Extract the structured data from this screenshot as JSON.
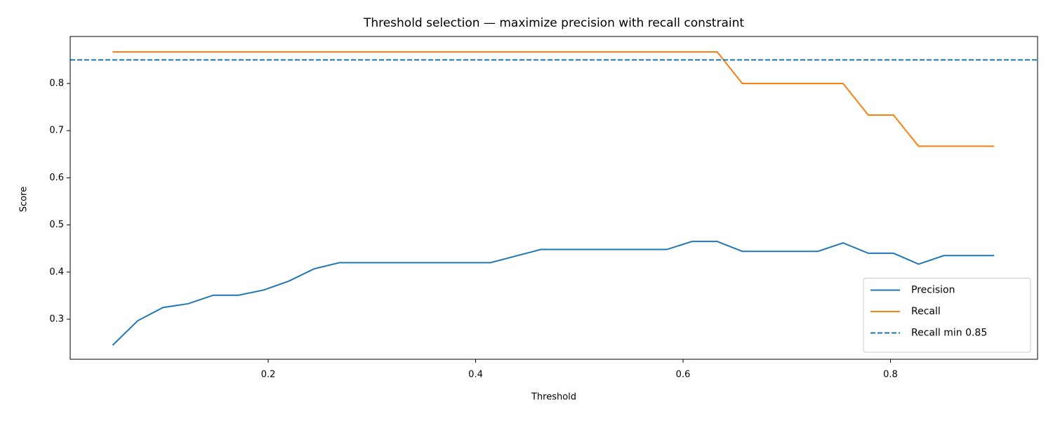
{
  "chart_data": {
    "type": "line",
    "title": "Threshold selection — maximize precision with recall constraint",
    "x_label": "Threshold",
    "y_label": "Score",
    "x": [
      0.05,
      0.0743,
      0.0986,
      0.1229,
      0.1471,
      0.1714,
      0.1957,
      0.22,
      0.2443,
      0.2686,
      0.2929,
      0.3171,
      0.3414,
      0.3657,
      0.39,
      0.4143,
      0.4386,
      0.4629,
      0.4871,
      0.5114,
      0.5357,
      0.56,
      0.5843,
      0.6086,
      0.6329,
      0.6571,
      0.6814,
      0.7057,
      0.73,
      0.7543,
      0.7786,
      0.8029,
      0.8271,
      0.8514,
      0.8757,
      0.9
    ],
    "series": [
      {
        "name": "Precision",
        "color": "#1f77b4",
        "values": [
          0.245,
          0.297,
          0.325,
          0.333,
          0.351,
          0.351,
          0.362,
          0.381,
          0.407,
          0.42,
          0.42,
          0.42,
          0.42,
          0.42,
          0.42,
          0.42,
          0.434,
          0.448,
          0.448,
          0.448,
          0.448,
          0.448,
          0.448,
          0.465,
          0.465,
          0.444,
          0.444,
          0.444,
          0.444,
          0.462,
          0.44,
          0.44,
          0.417,
          0.435,
          0.435,
          0.435
        ]
      },
      {
        "name": "Recall",
        "color": "#ff7f0e",
        "values": [
          0.867,
          0.867,
          0.867,
          0.867,
          0.867,
          0.867,
          0.867,
          0.867,
          0.867,
          0.867,
          0.867,
          0.867,
          0.867,
          0.867,
          0.867,
          0.867,
          0.867,
          0.867,
          0.867,
          0.867,
          0.867,
          0.867,
          0.867,
          0.867,
          0.867,
          0.8,
          0.8,
          0.8,
          0.8,
          0.8,
          0.733,
          0.733,
          0.667,
          0.667,
          0.667,
          0.667
        ]
      }
    ],
    "hlines": [
      {
        "name": "Recall min 0.85",
        "value": 0.85,
        "color": "#1f77b4",
        "dashed": true
      }
    ],
    "xlim": [
      0.0091,
      0.9418
    ],
    "ylim": [
      0.2152,
      0.8997
    ],
    "xticks": [
      0.2,
      0.4,
      0.6,
      0.8
    ],
    "yticks": [
      0.3,
      0.4,
      0.5,
      0.6,
      0.7,
      0.8
    ],
    "legend": "lower right"
  }
}
